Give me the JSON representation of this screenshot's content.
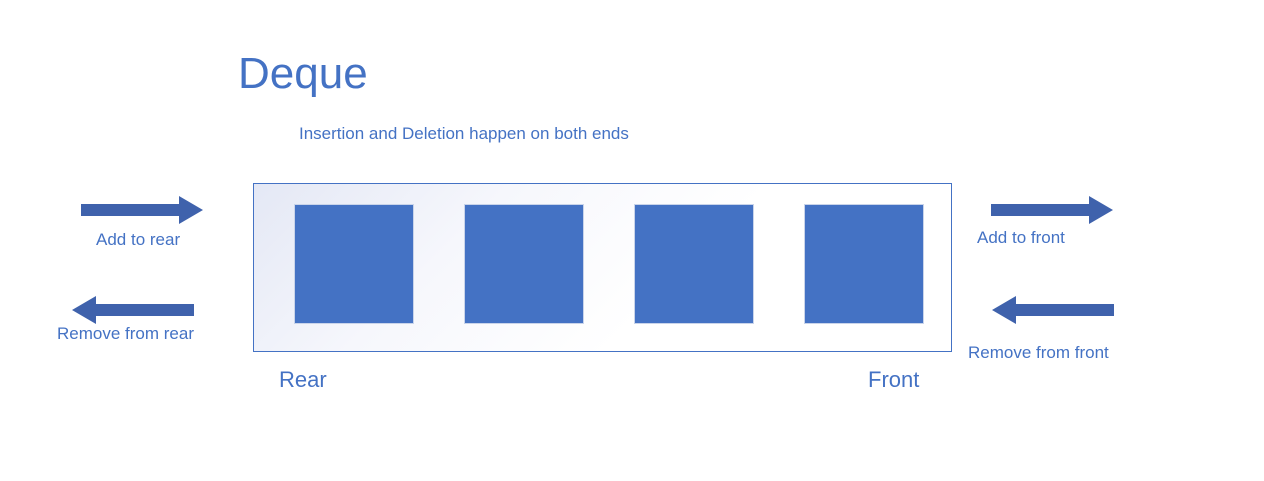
{
  "title": "Deque",
  "subtitle": "Insertion and Deletion happen on both ends",
  "elements": [
    "",
    "",
    "",
    ""
  ],
  "ends": {
    "rear": "Rear",
    "front": "Front"
  },
  "operations": {
    "add_to_rear": "Add to rear",
    "remove_from_rear": "Remove from rear",
    "add_to_front": "Add to front",
    "remove_from_front": "Remove from front"
  },
  "colors": {
    "primary": "#4472c4",
    "arrow": "#3f62ac",
    "element_border": "#c9d4ea"
  },
  "icons": {
    "right_arrow": "arrow-right-icon",
    "left_arrow": "arrow-left-icon"
  }
}
